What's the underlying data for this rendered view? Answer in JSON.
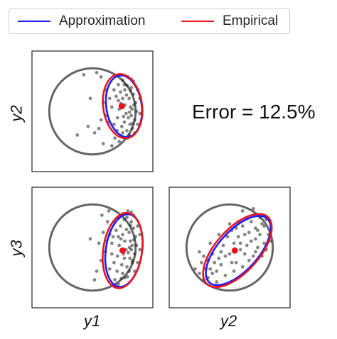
{
  "legend": {
    "approx_label": "Approximation",
    "empirical_label": "Empirical",
    "approx_color": "#1a1aff",
    "empirical_color": "#e8141a"
  },
  "error_text": "Error = 12.5%",
  "colors": {
    "circle": "#666666",
    "points": "#222222",
    "center": "#e8141a"
  },
  "chart_data": [
    {
      "type": "scatter",
      "panel": "y1-y2",
      "xlabel": "",
      "ylabel": "y2",
      "xlim": [
        -1.4,
        1.4
      ],
      "ylim": [
        -1.4,
        1.4
      ],
      "reference_circle": {
        "cx": 0,
        "cy": 0,
        "r": 1
      },
      "empirical_ellipse": {
        "cx": 0.7,
        "cy": 0.12,
        "rx": 0.45,
        "ry": 0.75,
        "angle": -8
      },
      "approx_ellipse": {
        "cx": 0.73,
        "cy": 0.12,
        "rx": 0.41,
        "ry": 0.72,
        "angle": -8
      },
      "center_point": {
        "x": 0.68,
        "y": 0.12
      },
      "points": [
        [
          0.9,
          0.55
        ],
        [
          0.95,
          0.4
        ],
        [
          1.0,
          0.2
        ],
        [
          1.02,
          0.0
        ],
        [
          0.98,
          -0.2
        ],
        [
          0.92,
          -0.4
        ],
        [
          0.85,
          -0.55
        ],
        [
          0.8,
          0.6
        ],
        [
          0.75,
          0.5
        ],
        [
          0.85,
          0.3
        ],
        [
          0.88,
          0.1
        ],
        [
          0.9,
          -0.1
        ],
        [
          0.87,
          -0.3
        ],
        [
          0.8,
          -0.45
        ],
        [
          0.7,
          -0.5
        ],
        [
          0.65,
          0.45
        ],
        [
          0.7,
          0.3
        ],
        [
          0.75,
          0.15
        ],
        [
          0.78,
          -0.05
        ],
        [
          0.74,
          -0.25
        ],
        [
          0.68,
          -0.35
        ],
        [
          0.6,
          0.25
        ],
        [
          0.62,
          0.05
        ],
        [
          0.58,
          -0.15
        ],
        [
          0.55,
          0.35
        ],
        [
          0.5,
          -0.3
        ],
        [
          0.45,
          0.1
        ],
        [
          0.5,
          0.5
        ],
        [
          0.95,
          0.7
        ],
        [
          1.05,
          0.5
        ],
        [
          1.1,
          0.3
        ],
        [
          1.1,
          -0.05
        ],
        [
          1.05,
          -0.3
        ],
        [
          0.98,
          -0.5
        ],
        [
          0.9,
          0.75
        ],
        [
          0.82,
          0.8
        ],
        [
          0.7,
          0.72
        ],
        [
          0.6,
          0.62
        ],
        [
          0.92,
          0.05
        ],
        [
          0.96,
          0.15
        ],
        [
          0.83,
          -0.15
        ],
        [
          0.86,
          -0.02
        ],
        [
          0.79,
          0.38
        ],
        [
          0.72,
          -0.12
        ],
        [
          0.66,
          0.18
        ],
        [
          0.88,
          0.48
        ],
        [
          0.93,
          -0.28
        ],
        [
          0.81,
          -0.62
        ],
        [
          0.74,
          0.62
        ],
        [
          0.67,
          -0.58
        ],
        [
          0.57,
          -0.45
        ],
        [
          0.4,
          0.3
        ],
        [
          0.3,
          -0.1
        ],
        [
          0.2,
          0.8
        ],
        [
          0.1,
          0.9
        ],
        [
          -0.2,
          0.85
        ],
        [
          -0.1,
          -0.35
        ],
        [
          0.05,
          -0.5
        ],
        [
          -0.35,
          -0.55
        ],
        [
          0.15,
          -0.4
        ],
        [
          0.25,
          -0.75
        ],
        [
          0.35,
          -0.25
        ],
        [
          0.25,
          0.2
        ],
        [
          -0.05,
          0.3
        ],
        [
          0.2,
          -0.2
        ],
        [
          0.3,
          0.5
        ],
        [
          0.52,
          -0.62
        ],
        [
          0.45,
          -0.8
        ],
        [
          0.62,
          -0.7
        ]
      ]
    },
    {
      "type": "scatter",
      "panel": "y1-y3",
      "xlabel": "y1",
      "ylabel": "y3",
      "xlim": [
        -1.4,
        1.4
      ],
      "ylim": [
        -1.4,
        1.4
      ],
      "reference_circle": {
        "cx": 0,
        "cy": 0,
        "r": 1
      },
      "empirical_ellipse": {
        "cx": 0.7,
        "cy": -0.07,
        "rx": 0.45,
        "ry": 0.88,
        "angle": 8
      },
      "approx_ellipse": {
        "cx": 0.73,
        "cy": -0.07,
        "rx": 0.42,
        "ry": 0.85,
        "angle": 8
      },
      "center_point": {
        "x": 0.7,
        "y": -0.07
      },
      "points": [
        [
          0.9,
          0.6
        ],
        [
          0.95,
          0.45
        ],
        [
          1.0,
          0.25
        ],
        [
          1.02,
          0.05
        ],
        [
          0.98,
          -0.15
        ],
        [
          0.92,
          -0.35
        ],
        [
          0.85,
          -0.55
        ],
        [
          0.75,
          -0.7
        ],
        [
          0.8,
          0.7
        ],
        [
          0.85,
          0.35
        ],
        [
          0.88,
          0.15
        ],
        [
          0.9,
          -0.05
        ],
        [
          0.87,
          -0.25
        ],
        [
          0.8,
          -0.45
        ],
        [
          0.7,
          -0.6
        ],
        [
          0.65,
          0.5
        ],
        [
          0.7,
          0.3
        ],
        [
          0.75,
          0.15
        ],
        [
          0.78,
          -0.05
        ],
        [
          0.74,
          -0.25
        ],
        [
          0.68,
          -0.4
        ],
        [
          0.6,
          0.25
        ],
        [
          0.62,
          0.05
        ],
        [
          0.58,
          -0.2
        ],
        [
          0.55,
          0.4
        ],
        [
          0.5,
          -0.35
        ],
        [
          0.45,
          0.1
        ],
        [
          0.5,
          0.6
        ],
        [
          0.95,
          0.75
        ],
        [
          1.05,
          0.5
        ],
        [
          1.1,
          0.3
        ],
        [
          1.1,
          -0.05
        ],
        [
          1.05,
          -0.35
        ],
        [
          0.98,
          -0.55
        ],
        [
          0.9,
          0.82
        ],
        [
          0.82,
          0.85
        ],
        [
          0.7,
          0.78
        ],
        [
          0.6,
          0.68
        ],
        [
          0.92,
          0.05
        ],
        [
          0.96,
          0.18
        ],
        [
          0.83,
          -0.12
        ],
        [
          0.86,
          0.0
        ],
        [
          0.79,
          0.42
        ],
        [
          0.72,
          -0.15
        ],
        [
          0.66,
          0.2
        ],
        [
          0.88,
          0.52
        ],
        [
          0.93,
          -0.3
        ],
        [
          0.81,
          -0.68
        ],
        [
          0.74,
          0.65
        ],
        [
          0.67,
          -0.72
        ],
        [
          0.57,
          -0.55
        ],
        [
          0.6,
          -0.85
        ],
        [
          0.52,
          -0.75
        ],
        [
          0.4,
          0.3
        ],
        [
          0.3,
          -0.1
        ],
        [
          0.35,
          0.6
        ],
        [
          0.25,
          0.35
        ],
        [
          0.2,
          -0.3
        ],
        [
          0.4,
          -0.5
        ],
        [
          0.15,
          0.1
        ],
        [
          0.3,
          0.15
        ],
        [
          0.45,
          -0.15
        ],
        [
          0.1,
          -0.55
        ],
        [
          -0.05,
          0.2
        ],
        [
          0.05,
          -0.75
        ],
        [
          0.38,
          0.85
        ],
        [
          0.22,
          0.75
        ],
        [
          0.48,
          0.25
        ]
      ]
    },
    {
      "type": "scatter",
      "panel": "y2-y3",
      "xlabel": "y2",
      "ylabel": "",
      "xlim": [
        -1.4,
        1.4
      ],
      "ylim": [
        -1.4,
        1.4
      ],
      "reference_circle": {
        "cx": 0,
        "cy": 0,
        "r": 1
      },
      "empirical_ellipse": {
        "cx": 0.18,
        "cy": -0.07,
        "rx": 0.5,
        "ry": 1.05,
        "angle": 42
      },
      "approx_ellipse": {
        "cx": 0.2,
        "cy": -0.07,
        "rx": 0.46,
        "ry": 1.0,
        "angle": 42
      },
      "center_point": {
        "x": 0.12,
        "y": -0.07
      },
      "points": [
        [
          0.5,
          0.6
        ],
        [
          0.6,
          0.45
        ],
        [
          0.7,
          0.3
        ],
        [
          0.8,
          0.1
        ],
        [
          0.85,
          -0.05
        ],
        [
          0.75,
          0.55
        ],
        [
          0.55,
          0.75
        ],
        [
          0.4,
          0.7
        ],
        [
          0.3,
          0.5
        ],
        [
          0.45,
          0.35
        ],
        [
          0.6,
          0.2
        ],
        [
          0.65,
          0.0
        ],
        [
          0.55,
          -0.2
        ],
        [
          0.35,
          0.3
        ],
        [
          0.2,
          0.25
        ],
        [
          0.4,
          0.05
        ],
        [
          0.25,
          -0.05
        ],
        [
          0.1,
          0.1
        ],
        [
          0.0,
          -0.15
        ],
        [
          -0.1,
          -0.2
        ],
        [
          0.15,
          -0.35
        ],
        [
          -0.2,
          -0.4
        ],
        [
          -0.3,
          -0.55
        ],
        [
          -0.4,
          -0.6
        ],
        [
          -0.5,
          -0.7
        ],
        [
          -0.6,
          -0.75
        ],
        [
          -0.45,
          -0.5
        ],
        [
          -0.35,
          -0.35
        ],
        [
          -0.25,
          -0.25
        ],
        [
          -0.15,
          0.05
        ],
        [
          0.05,
          0.4
        ],
        [
          0.2,
          0.6
        ],
        [
          0.7,
          0.7
        ],
        [
          0.8,
          0.5
        ],
        [
          0.9,
          0.3
        ],
        [
          0.95,
          0.15
        ],
        [
          0.6,
          -0.1
        ],
        [
          0.45,
          -0.3
        ],
        [
          0.3,
          -0.45
        ],
        [
          0.1,
          -0.55
        ],
        [
          -0.1,
          -0.65
        ],
        [
          -0.3,
          -0.8
        ],
        [
          -0.55,
          -0.5
        ],
        [
          -0.65,
          -0.35
        ],
        [
          -0.7,
          -0.6
        ],
        [
          -0.8,
          -0.5
        ],
        [
          -0.6,
          -0.2
        ],
        [
          -0.4,
          -0.15
        ],
        [
          0.5,
          0.15
        ],
        [
          0.35,
          -0.15
        ],
        [
          0.15,
          0.45
        ],
        [
          -0.05,
          0.25
        ],
        [
          0.65,
          0.4
        ],
        [
          0.75,
          -0.2
        ],
        [
          0.55,
          0.9
        ],
        [
          0.3,
          0.85
        ],
        [
          -0.2,
          -0.1
        ],
        [
          0.05,
          -0.35
        ],
        [
          -0.5,
          -0.3
        ],
        [
          0.25,
          0.1
        ],
        [
          0.0,
          0.55
        ],
        [
          -0.25,
          0.3
        ],
        [
          -0.45,
          0.1
        ],
        [
          -0.7,
          -0.1
        ],
        [
          0.85,
          0.65
        ]
      ]
    }
  ]
}
